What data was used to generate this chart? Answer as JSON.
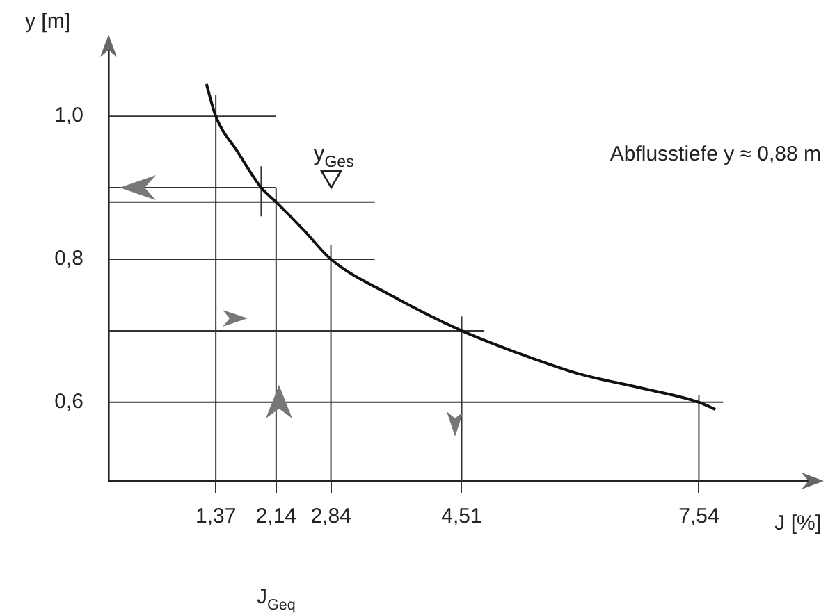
{
  "chart_data": {
    "type": "line",
    "xlabel": "J [%]",
    "ylabel": "y [m]",
    "xlim": [
      0,
      9.1
    ],
    "ylim": [
      0.49,
      1.11
    ],
    "xticks": [
      {
        "value": 1.37,
        "label": "1,37"
      },
      {
        "value": 2.14,
        "label": "2,14"
      },
      {
        "value": 2.84,
        "label": "2,84"
      },
      {
        "value": 4.51,
        "label": "4,51"
      },
      {
        "value": 7.54,
        "label": "7,54"
      }
    ],
    "yticks": [
      {
        "value": 0.6,
        "label": "0,6"
      },
      {
        "value": 0.8,
        "label": "0,8"
      },
      {
        "value": 1.0,
        "label": "1,0"
      }
    ],
    "grid": false,
    "legend": false,
    "marker": "none",
    "line_style": "solid",
    "series": [
      {
        "color": "#111111",
        "x": [
          1.25,
          1.37,
          1.65,
          1.95,
          2.14,
          2.5,
          2.84,
          3.6,
          4.51,
          5.2,
          6,
          6.8,
          7.54,
          7.75
        ],
        "values": [
          1.045,
          1.0,
          0.95,
          0.9,
          0.88,
          0.84,
          0.8,
          0.75,
          0.7,
          0.67,
          0.64,
          0.62,
          0.6,
          0.59
        ]
      },
      {
        "color": "#333333",
        "x": [
          0,
          2.14
        ],
        "values": [
          1.0,
          1.0
        ]
      },
      {
        "color": "#333333",
        "x": [
          0,
          2.14
        ],
        "values": [
          0.9,
          0.9
        ]
      },
      {
        "color": "#333333",
        "x": [
          0,
          3.4
        ],
        "values": [
          0.88,
          0.88
        ]
      },
      {
        "color": "#333333",
        "x": [
          0,
          3.4
        ],
        "values": [
          0.8,
          0.8
        ]
      },
      {
        "color": "#333333",
        "x": [
          0,
          4.8
        ],
        "values": [
          0.7,
          0.7
        ]
      },
      {
        "color": "#333333",
        "x": [
          0,
          7.85
        ],
        "values": [
          0.6,
          0.6
        ]
      },
      {
        "color": "#333333",
        "x": [
          1.37,
          1.37
        ],
        "values": [
          0.49,
          1.03
        ]
      },
      {
        "color": "#333333",
        "x": [
          1.95,
          1.95
        ],
        "values": [
          0.86,
          0.93
        ]
      },
      {
        "color": "#333333",
        "x": [
          2.14,
          2.14
        ],
        "values": [
          0.49,
          0.9
        ]
      },
      {
        "color": "#333333",
        "x": [
          2.84,
          2.84
        ],
        "values": [
          0.49,
          0.82
        ]
      },
      {
        "color": "#333333",
        "x": [
          4.51,
          4.51
        ],
        "values": [
          0.49,
          0.72
        ]
      },
      {
        "color": "#333333",
        "x": [
          7.54,
          7.54
        ],
        "values": [
          0.49,
          0.61
        ]
      }
    ],
    "annotations": [
      "Abflusstiefe y ≈ 0,88 m",
      {
        "text": "y$_{Ges}$",
        "x": 2.84,
        "y": 0.88
      },
      "J$_{Geq}$"
    ]
  }
}
